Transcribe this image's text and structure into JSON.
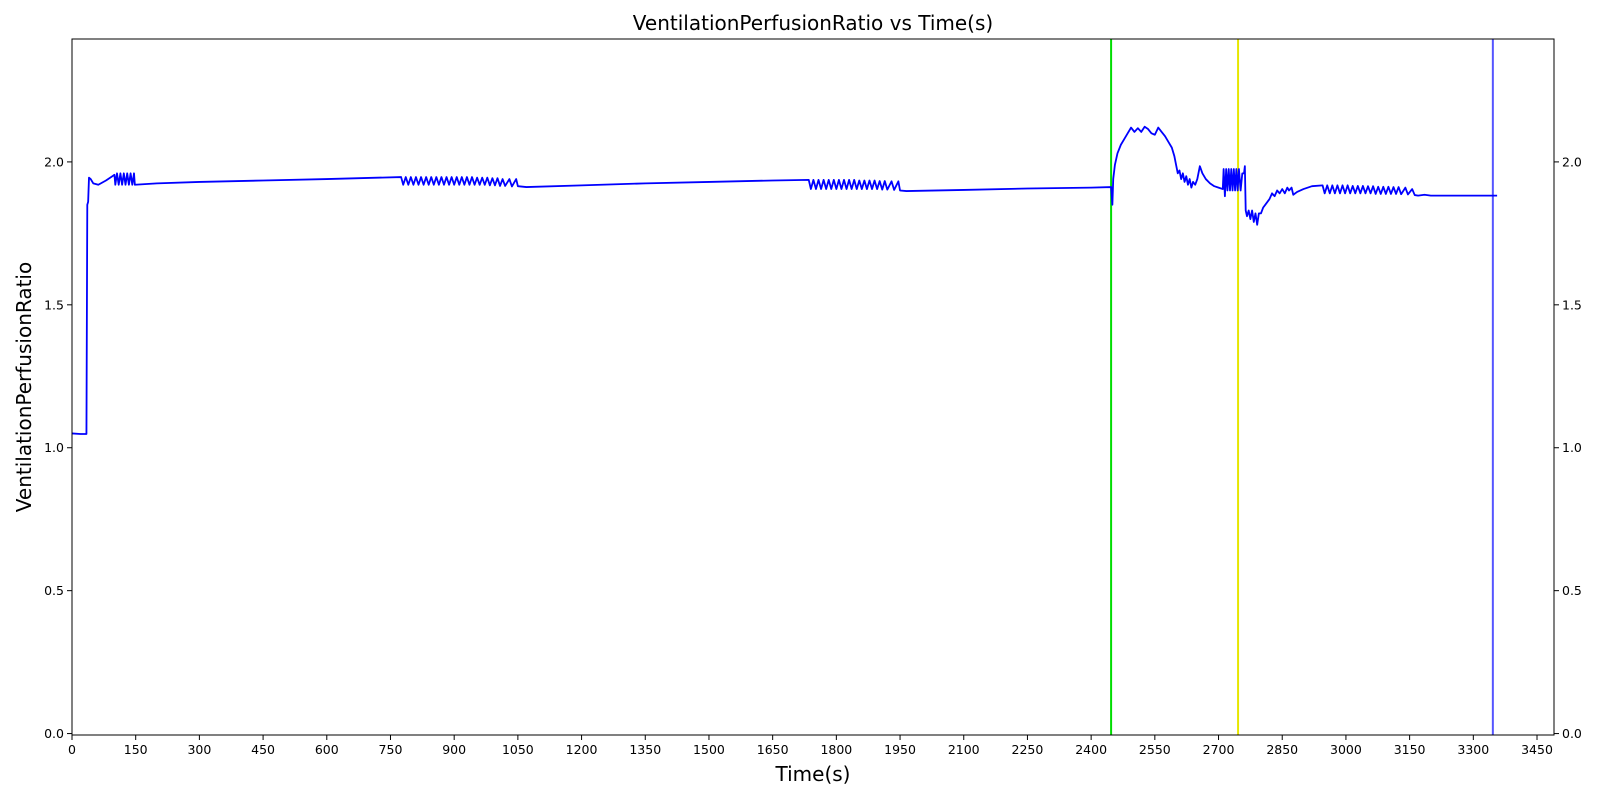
{
  "chart_data": {
    "type": "line",
    "title": "VentilationPerfusionRatio vs Time(s)",
    "xlabel": "Time(s)",
    "ylabel": "VentilationPerfusionRatio",
    "xlim": [
      0,
      3490
    ],
    "ylim": [
      -0.005,
      2.43
    ],
    "x_ticks": [
      0,
      150,
      300,
      450,
      600,
      750,
      900,
      1050,
      1200,
      1350,
      1500,
      1650,
      1800,
      1950,
      2100,
      2250,
      2400,
      2550,
      2700,
      2850,
      3000,
      3150,
      3300,
      3450
    ],
    "y_ticks": [
      0.0,
      0.5,
      1.0,
      1.5,
      2.0
    ],
    "y_tick_labels": [
      "0.0",
      "0.5",
      "1.0",
      "1.5",
      "2.0"
    ],
    "right_axis_mirror": true,
    "grid": false,
    "line_color": "#0000ff",
    "series": [
      {
        "values": [
          [
            0,
            1.05
          ],
          [
            20,
            1.048
          ],
          [
            34,
            1.048
          ],
          [
            36,
            1.85
          ],
          [
            38,
            1.86
          ],
          [
            40,
            1.945
          ],
          [
            44,
            1.94
          ],
          [
            50,
            1.925
          ],
          [
            62,
            1.92
          ],
          [
            80,
            1.935
          ],
          [
            95,
            1.95
          ],
          [
            100,
            1.955
          ],
          [
            102,
            1.92
          ],
          [
            106,
            1.96
          ],
          [
            110,
            1.92
          ],
          [
            114,
            1.96
          ],
          [
            118,
            1.92
          ],
          [
            122,
            1.96
          ],
          [
            126,
            1.92
          ],
          [
            130,
            1.96
          ],
          [
            134,
            1.92
          ],
          [
            138,
            1.96
          ],
          [
            142,
            1.92
          ],
          [
            146,
            1.96
          ],
          [
            148,
            1.92
          ],
          [
            200,
            1.925
          ],
          [
            300,
            1.93
          ],
          [
            450,
            1.935
          ],
          [
            600,
            1.94
          ],
          [
            775,
            1.947
          ],
          [
            780,
            1.92
          ],
          [
            786,
            1.947
          ],
          [
            792,
            1.92
          ],
          [
            798,
            1.947
          ],
          [
            804,
            1.92
          ],
          [
            810,
            1.947
          ],
          [
            816,
            1.92
          ],
          [
            822,
            1.947
          ],
          [
            828,
            1.92
          ],
          [
            834,
            1.947
          ],
          [
            840,
            1.92
          ],
          [
            846,
            1.947
          ],
          [
            852,
            1.92
          ],
          [
            858,
            1.947
          ],
          [
            864,
            1.92
          ],
          [
            870,
            1.947
          ],
          [
            876,
            1.92
          ],
          [
            882,
            1.947
          ],
          [
            888,
            1.92
          ],
          [
            894,
            1.947
          ],
          [
            900,
            1.92
          ],
          [
            906,
            1.947
          ],
          [
            912,
            1.92
          ],
          [
            918,
            1.947
          ],
          [
            924,
            1.92
          ],
          [
            930,
            1.947
          ],
          [
            936,
            1.92
          ],
          [
            942,
            1.947
          ],
          [
            948,
            1.92
          ],
          [
            954,
            1.945
          ],
          [
            960,
            1.92
          ],
          [
            966,
            1.945
          ],
          [
            972,
            1.92
          ],
          [
            978,
            1.945
          ],
          [
            984,
            1.918
          ],
          [
            990,
            1.943
          ],
          [
            996,
            1.918
          ],
          [
            1002,
            1.943
          ],
          [
            1008,
            1.916
          ],
          [
            1014,
            1.94
          ],
          [
            1020,
            1.916
          ],
          [
            1030,
            1.94
          ],
          [
            1036,
            1.914
          ],
          [
            1046,
            1.94
          ],
          [
            1050,
            1.915
          ],
          [
            1070,
            1.912
          ],
          [
            1200,
            1.918
          ],
          [
            1350,
            1.925
          ],
          [
            1500,
            1.93
          ],
          [
            1650,
            1.935
          ],
          [
            1735,
            1.937
          ],
          [
            1740,
            1.905
          ],
          [
            1746,
            1.937
          ],
          [
            1752,
            1.905
          ],
          [
            1758,
            1.937
          ],
          [
            1764,
            1.905
          ],
          [
            1770,
            1.937
          ],
          [
            1776,
            1.905
          ],
          [
            1782,
            1.937
          ],
          [
            1788,
            1.905
          ],
          [
            1794,
            1.937
          ],
          [
            1800,
            1.905
          ],
          [
            1806,
            1.937
          ],
          [
            1812,
            1.905
          ],
          [
            1818,
            1.937
          ],
          [
            1824,
            1.905
          ],
          [
            1830,
            1.937
          ],
          [
            1836,
            1.905
          ],
          [
            1842,
            1.937
          ],
          [
            1848,
            1.905
          ],
          [
            1854,
            1.935
          ],
          [
            1860,
            1.905
          ],
          [
            1866,
            1.935
          ],
          [
            1872,
            1.905
          ],
          [
            1878,
            1.935
          ],
          [
            1884,
            1.905
          ],
          [
            1890,
            1.935
          ],
          [
            1896,
            1.905
          ],
          [
            1902,
            1.933
          ],
          [
            1908,
            1.903
          ],
          [
            1914,
            1.933
          ],
          [
            1920,
            1.903
          ],
          [
            1930,
            1.932
          ],
          [
            1936,
            1.902
          ],
          [
            1946,
            1.932
          ],
          [
            1950,
            1.9
          ],
          [
            1965,
            1.898
          ],
          [
            2100,
            1.902
          ],
          [
            2250,
            1.907
          ],
          [
            2400,
            1.91
          ],
          [
            2447,
            1.912
          ],
          [
            2450,
            1.85
          ],
          [
            2452,
            1.94
          ],
          [
            2456,
            1.99
          ],
          [
            2462,
            2.03
          ],
          [
            2470,
            2.06
          ],
          [
            2478,
            2.08
          ],
          [
            2486,
            2.1
          ],
          [
            2494,
            2.12
          ],
          [
            2502,
            2.105
          ],
          [
            2510,
            2.118
          ],
          [
            2518,
            2.105
          ],
          [
            2526,
            2.123
          ],
          [
            2534,
            2.115
          ],
          [
            2542,
            2.1
          ],
          [
            2550,
            2.095
          ],
          [
            2558,
            2.12
          ],
          [
            2566,
            2.105
          ],
          [
            2574,
            2.09
          ],
          [
            2582,
            2.07
          ],
          [
            2590,
            2.05
          ],
          [
            2596,
            2.02
          ],
          [
            2600,
            1.99
          ],
          [
            2604,
            1.96
          ],
          [
            2608,
            1.97
          ],
          [
            2612,
            1.94
          ],
          [
            2616,
            1.96
          ],
          [
            2620,
            1.93
          ],
          [
            2624,
            1.95
          ],
          [
            2628,
            1.92
          ],
          [
            2632,
            1.94
          ],
          [
            2636,
            1.91
          ],
          [
            2640,
            1.93
          ],
          [
            2645,
            1.92
          ],
          [
            2650,
            1.94
          ],
          [
            2656,
            1.985
          ],
          [
            2662,
            1.96
          ],
          [
            2670,
            1.94
          ],
          [
            2680,
            1.925
          ],
          [
            2690,
            1.915
          ],
          [
            2700,
            1.91
          ],
          [
            2710,
            1.905
          ],
          [
            2712,
            1.975
          ],
          [
            2715,
            1.88
          ],
          [
            2718,
            1.975
          ],
          [
            2721,
            1.9
          ],
          [
            2724,
            1.975
          ],
          [
            2727,
            1.9
          ],
          [
            2730,
            1.975
          ],
          [
            2733,
            1.9
          ],
          [
            2736,
            1.975
          ],
          [
            2739,
            1.9
          ],
          [
            2742,
            1.975
          ],
          [
            2745,
            1.9
          ],
          [
            2748,
            1.975
          ],
          [
            2752,
            1.9
          ],
          [
            2756,
            1.96
          ],
          [
            2760,
            1.96
          ],
          [
            2762,
            1.985
          ],
          [
            2764,
            1.83
          ],
          [
            2767,
            1.81
          ],
          [
            2771,
            1.83
          ],
          [
            2775,
            1.8
          ],
          [
            2779,
            1.83
          ],
          [
            2783,
            1.79
          ],
          [
            2787,
            1.82
          ],
          [
            2791,
            1.78
          ],
          [
            2795,
            1.82
          ],
          [
            2800,
            1.82
          ],
          [
            2805,
            1.84
          ],
          [
            2810,
            1.85
          ],
          [
            2815,
            1.86
          ],
          [
            2820,
            1.87
          ],
          [
            2826,
            1.89
          ],
          [
            2832,
            1.88
          ],
          [
            2838,
            1.9
          ],
          [
            2844,
            1.89
          ],
          [
            2850,
            1.905
          ],
          [
            2856,
            1.89
          ],
          [
            2862,
            1.91
          ],
          [
            2866,
            1.9
          ],
          [
            2872,
            1.91
          ],
          [
            2876,
            1.885
          ],
          [
            2885,
            1.895
          ],
          [
            2900,
            1.905
          ],
          [
            2920,
            1.915
          ],
          [
            2945,
            1.918
          ],
          [
            2950,
            1.89
          ],
          [
            2956,
            1.918
          ],
          [
            2962,
            1.89
          ],
          [
            2968,
            1.918
          ],
          [
            2974,
            1.89
          ],
          [
            2980,
            1.918
          ],
          [
            2986,
            1.89
          ],
          [
            2992,
            1.918
          ],
          [
            2998,
            1.89
          ],
          [
            3004,
            1.918
          ],
          [
            3010,
            1.89
          ],
          [
            3016,
            1.916
          ],
          [
            3022,
            1.89
          ],
          [
            3028,
            1.916
          ],
          [
            3034,
            1.89
          ],
          [
            3040,
            1.916
          ],
          [
            3046,
            1.89
          ],
          [
            3052,
            1.915
          ],
          [
            3058,
            1.89
          ],
          [
            3064,
            1.915
          ],
          [
            3070,
            1.888
          ],
          [
            3076,
            1.913
          ],
          [
            3082,
            1.888
          ],
          [
            3088,
            1.913
          ],
          [
            3094,
            1.888
          ],
          [
            3100,
            1.913
          ],
          [
            3106,
            1.888
          ],
          [
            3112,
            1.912
          ],
          [
            3118,
            1.888
          ],
          [
            3124,
            1.912
          ],
          [
            3130,
            1.887
          ],
          [
            3140,
            1.91
          ],
          [
            3146,
            1.886
          ],
          [
            3156,
            1.905
          ],
          [
            3162,
            1.884
          ],
          [
            3170,
            1.882
          ],
          [
            3185,
            1.885
          ],
          [
            3200,
            1.882
          ],
          [
            3300,
            1.882
          ],
          [
            3356,
            1.882
          ]
        ]
      }
    ],
    "vertical_markers": [
      {
        "x": 2447,
        "color": "#00dd00"
      },
      {
        "x": 2746,
        "color": "#e6e600"
      },
      {
        "x": 3346,
        "color": "#5555ff"
      }
    ]
  }
}
